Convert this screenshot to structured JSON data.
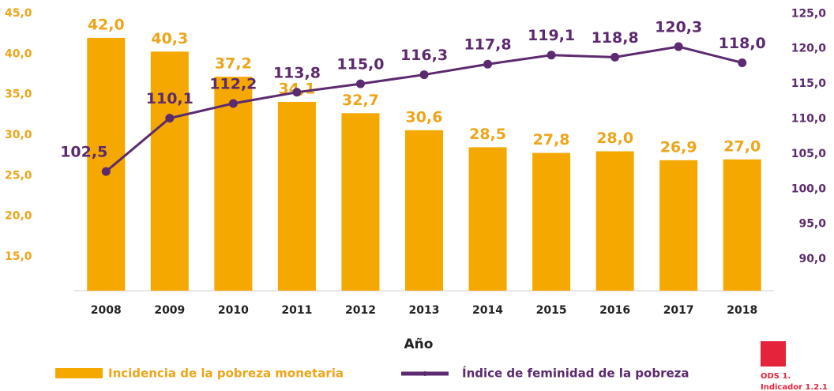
{
  "chart_data": {
    "type": "bar",
    "x_label": "Año",
    "categories": [
      "2008",
      "2009",
      "2010",
      "2011",
      "2012",
      "2013",
      "2014",
      "2015",
      "2016",
      "2017",
      "2018"
    ],
    "series": [
      {
        "name": "Incidencia de la pobreza monetaria",
        "type": "bar",
        "color": "#f5a800",
        "label_color": "#eda51a",
        "values": [
          42.0,
          40.3,
          37.2,
          34.1,
          32.7,
          30.6,
          28.5,
          27.8,
          28.0,
          26.9,
          27.0
        ],
        "value_labels": [
          "42,0",
          "40,3",
          "37,2",
          "34,1",
          "32,7",
          "30,6",
          "28,5",
          "27,8",
          "28,0",
          "26,9",
          "27,0"
        ]
      },
      {
        "name": "Índice de feminidad de la pobreza",
        "type": "line",
        "axis": "y2",
        "color": "#5c2a6e",
        "values": [
          102.5,
          110.1,
          112.2,
          113.8,
          115.0,
          116.3,
          117.8,
          119.1,
          118.8,
          120.3,
          118.0
        ],
        "value_labels": [
          "102,5",
          "110,1",
          "112,2",
          "113,8",
          "115,0",
          "116,3",
          "117,8",
          "119,1",
          "118,8",
          "120,3",
          "118,0"
        ]
      }
    ],
    "ylim": [
      10.8,
      45.5
    ],
    "yticks": [
      {
        "value": 15,
        "label": "15,0"
      },
      {
        "value": 20,
        "label": "20,0"
      },
      {
        "value": 25,
        "label": "25,0"
      },
      {
        "value": 30,
        "label": "30,0"
      },
      {
        "value": 35,
        "label": "35,0"
      },
      {
        "value": 40,
        "label": "40,0"
      },
      {
        "value": 45,
        "label": "45,0"
      }
    ],
    "y2lim": [
      85.5,
      125.6
    ],
    "y2ticks": [
      {
        "value": 90,
        "label": "90,0"
      },
      {
        "value": 95,
        "label": "95,0"
      },
      {
        "value": 100,
        "label": "100,0"
      },
      {
        "value": 105,
        "label": "105,0"
      },
      {
        "value": 110,
        "label": "110,0"
      },
      {
        "value": 115,
        "label": "115,0"
      },
      {
        "value": 120,
        "label": "120,0"
      },
      {
        "value": 125,
        "label": "125,0"
      }
    ],
    "annotations": [
      "ODS 1.",
      "Indicador 1.2.1"
    ]
  }
}
